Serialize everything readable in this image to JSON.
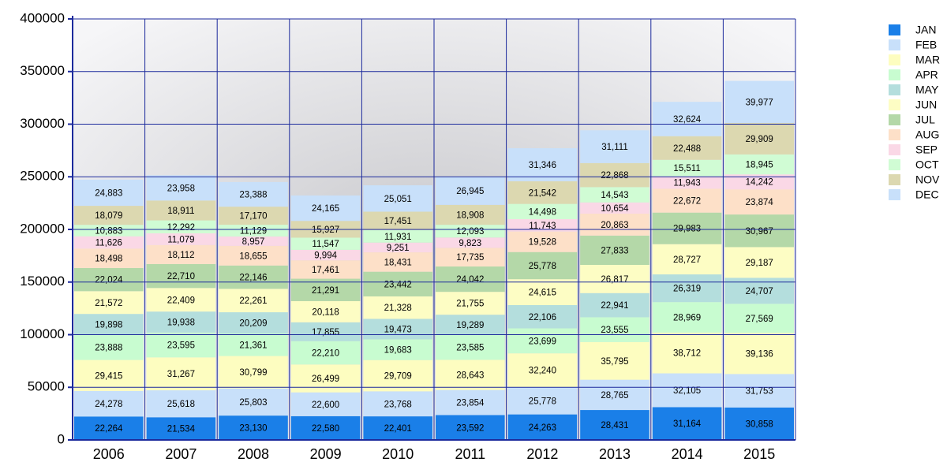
{
  "chart_data": {
    "type": "stacked_bar",
    "categories": [
      "2006",
      "2007",
      "2008",
      "2009",
      "2010",
      "2011",
      "2012",
      "2013",
      "2014",
      "2015"
    ],
    "ylim": [
      0,
      400000
    ],
    "yticks": [
      0,
      50000,
      100000,
      150000,
      200000,
      250000,
      300000,
      350000,
      400000
    ],
    "grid": true,
    "series": [
      {
        "name": "JAN",
        "color": "#1a7fe8",
        "values": [
          22264,
          21534,
          23130,
          22580,
          22401,
          23592,
          24263,
          28431,
          31164,
          30858
        ],
        "value_labels": [
          "22,264",
          "21,534",
          "23,130",
          "22,580",
          "22,401",
          "23,592",
          "24,263",
          "28,431",
          "31,164",
          "30,858"
        ]
      },
      {
        "name": "FEB",
        "color": "#c8e0fa",
        "values": [
          24278,
          25618,
          25803,
          22600,
          23768,
          23854,
          25778,
          28765,
          32105,
          31753
        ],
        "value_labels": [
          "24,278",
          "25,618",
          "25,803",
          "22,600",
          "23,768",
          "23,854",
          "25,778",
          "28,765",
          "32,105",
          "31,753"
        ]
      },
      {
        "name": "MAR",
        "color": "#fdfdc0",
        "values": [
          29415,
          31267,
          30799,
          26499,
          29709,
          28643,
          32240,
          35795,
          38712,
          39136
        ],
        "value_labels": [
          "29,415",
          "31,267",
          "30,799",
          "26,499",
          "29,709",
          "28,643",
          "32,240",
          "35,795",
          "38,712",
          "39,136"
        ]
      },
      {
        "name": "APR",
        "color": "#c8fcd0",
        "values": [
          23888,
          23595,
          21361,
          22210,
          19683,
          23585,
          23699,
          23555,
          28969,
          27569
        ],
        "value_labels": [
          "23,888",
          "23,595",
          "21,361",
          "22,210",
          "19,683",
          "23,585",
          "23,699",
          "23,555",
          "28,969",
          "27,569"
        ]
      },
      {
        "name": "MAY",
        "color": "#b4dedd",
        "values": [
          19898,
          19938,
          20209,
          17855,
          19473,
          19289,
          22106,
          22941,
          26319,
          24707
        ],
        "value_labels": [
          "19,898",
          "19,938",
          "20,209",
          "17,855",
          "19,473",
          "19,289",
          "22,106",
          "22,941",
          "26,319",
          "24,707"
        ]
      },
      {
        "name": "JUN",
        "color": "#fdfdc4",
        "values": [
          21572,
          22409,
          22261,
          20118,
          21328,
          21755,
          24615,
          26817,
          28727,
          29187
        ],
        "value_labels": [
          "21,572",
          "22,409",
          "22,261",
          "20,118",
          "21,328",
          "21,755",
          "24,615",
          "26,817",
          "28,727",
          "29,187"
        ]
      },
      {
        "name": "JUL",
        "color": "#b4d8a8",
        "values": [
          22024,
          22710,
          22146,
          21291,
          23442,
          24042,
          25778,
          27833,
          29983,
          30967
        ],
        "value_labels": [
          "22,024",
          "22,710",
          "22,146",
          "21,291",
          "23,442",
          "24,042",
          "25,778",
          "27,833",
          "29,983",
          "30,967"
        ]
      },
      {
        "name": "AUG",
        "color": "#fde0c8",
        "values": [
          18498,
          18112,
          18655,
          17461,
          18431,
          17735,
          19528,
          20863,
          22672,
          23874
        ],
        "value_labels": [
          "18,498",
          "18,112",
          "18,655",
          "17,461",
          "18,431",
          "17,735",
          "19,528",
          "20,863",
          "22,672",
          "23,874"
        ]
      },
      {
        "name": "SEP",
        "color": "#fad8e6",
        "values": [
          11626,
          11079,
          8957,
          9994,
          9251,
          9823,
          11743,
          10654,
          11943,
          14242
        ],
        "value_labels": [
          "11,626",
          "11,079",
          "8,957",
          "9,994",
          "9,251",
          "9,823",
          "11,743",
          "10,654",
          "11,943",
          "14,242"
        ]
      },
      {
        "name": "OCT",
        "color": "#d0fcd4",
        "values": [
          10883,
          12292,
          11129,
          11547,
          11931,
          12093,
          14498,
          14543,
          15511,
          18945
        ],
        "value_labels": [
          "10,883",
          "12,292",
          "11,129",
          "11,547",
          "11,931",
          "12,093",
          "14,498",
          "14,543",
          "15,511",
          "18,945"
        ]
      },
      {
        "name": "NOV",
        "color": "#dcd8b0",
        "values": [
          18079,
          18911,
          17170,
          15927,
          17451,
          18908,
          21542,
          22868,
          22488,
          29909
        ],
        "value_labels": [
          "18,079",
          "18,911",
          "17,170",
          "15,927",
          "17,451",
          "18,908",
          "21,542",
          "22,868",
          "22,488",
          "29,909"
        ]
      },
      {
        "name": "DEC",
        "color": "#c8e0fa",
        "values": [
          24883,
          23958,
          23388,
          24165,
          25051,
          26945,
          31346,
          31111,
          32624,
          39977
        ],
        "value_labels": [
          "24,883",
          "23,958",
          "23,388",
          "24,165",
          "25,051",
          "26,945",
          "31,346",
          "31,111",
          "32,624",
          "39,977"
        ]
      }
    ]
  }
}
